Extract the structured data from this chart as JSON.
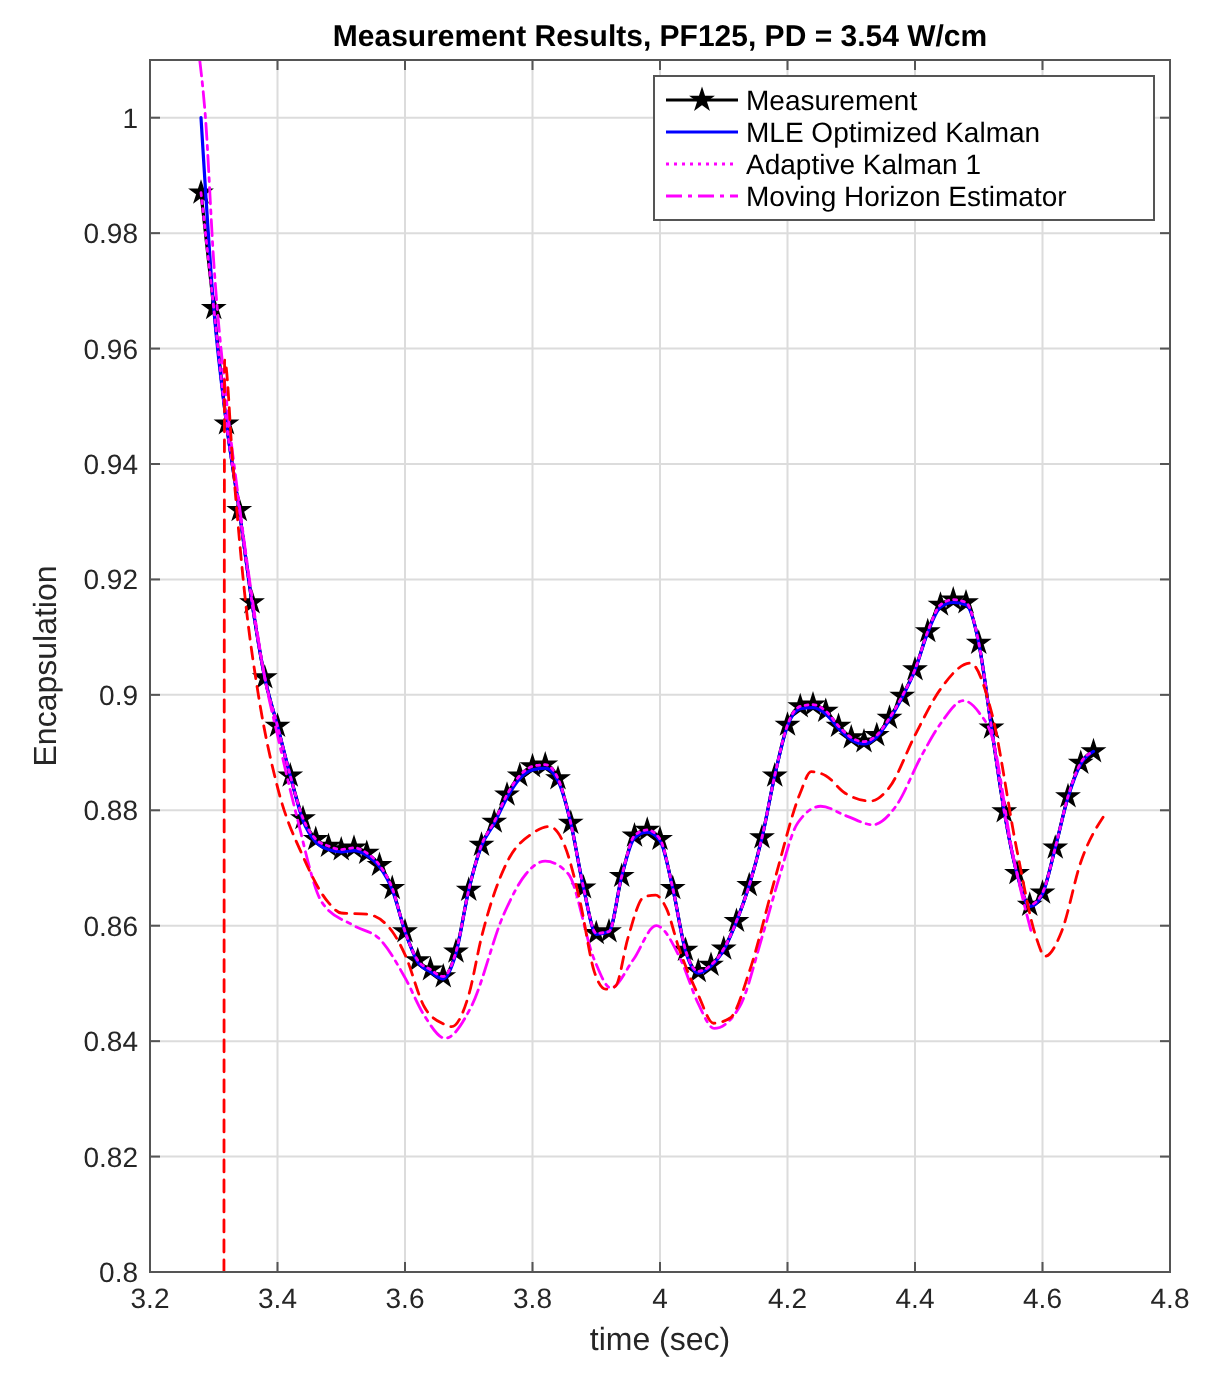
{
  "chart_data": {
    "type": "line",
    "title": "Measurement Results, PF125, PD = 3.54 W/cm",
    "xlabel": "time (sec)",
    "ylabel": "Encapsulation",
    "xlim": [
      3.2,
      4.8
    ],
    "xticks": [
      3.2,
      3.4,
      3.6,
      3.8,
      4,
      4.2,
      4.4,
      4.6,
      4.8
    ],
    "ylim": [
      0.8,
      1.01
    ],
    "yticks": [
      0.8,
      0.82,
      0.84,
      0.86,
      0.88,
      0.9,
      0.92,
      0.94,
      0.96,
      0.98,
      1
    ],
    "grid": true,
    "legend": "top right",
    "series": [
      {
        "name": "Measurement",
        "color": "#000000",
        "marker": "star",
        "line_style": "solid",
        "x": [
          3.28,
          3.3,
          3.32,
          3.34,
          3.36,
          3.38,
          3.4,
          3.42,
          3.44,
          3.46,
          3.48,
          3.5,
          3.52,
          3.54,
          3.56,
          3.58,
          3.6,
          3.62,
          3.64,
          3.66,
          3.68,
          3.7,
          3.72,
          3.74,
          3.76,
          3.78,
          3.8,
          3.82,
          3.84,
          3.86,
          3.88,
          3.9,
          3.92,
          3.94,
          3.96,
          3.98,
          4.0,
          4.02,
          4.04,
          4.06,
          4.08,
          4.1,
          4.12,
          4.14,
          4.16,
          4.18,
          4.2,
          4.22,
          4.24,
          4.26,
          4.28,
          4.3,
          4.32,
          4.34,
          4.36,
          4.38,
          4.4,
          4.42,
          4.44,
          4.46,
          4.48,
          4.5,
          4.52,
          4.54,
          4.56,
          4.58,
          4.6,
          4.62,
          4.64,
          4.66,
          4.68
        ],
        "values": [
          0.987,
          0.967,
          0.947,
          0.932,
          0.916,
          0.903,
          0.8946,
          0.886,
          0.8786,
          0.875,
          0.8738,
          0.8732,
          0.8735,
          0.8726,
          0.8705,
          0.8665,
          0.859,
          0.854,
          0.8524,
          0.8512,
          0.8555,
          0.8662,
          0.874,
          0.878,
          0.8827,
          0.886,
          0.8876,
          0.8879,
          0.8855,
          0.8778,
          0.8666,
          0.8587,
          0.859,
          0.8686,
          0.8756,
          0.8766,
          0.875,
          0.8665,
          0.8558,
          0.8521,
          0.8532,
          0.856,
          0.8608,
          0.867,
          0.8753,
          0.886,
          0.8948,
          0.898,
          0.8983,
          0.8972,
          0.8946,
          0.8926,
          0.8919,
          0.893,
          0.896,
          0.8998,
          0.9044,
          0.911,
          0.9156,
          0.9165,
          0.916,
          0.909,
          0.8943,
          0.8798,
          0.8691,
          0.8636,
          0.8657,
          0.8735,
          0.8824,
          0.8882,
          0.8902
        ]
      },
      {
        "name": "MLE Optimized Kalman",
        "color": "#0000ff",
        "line_style": "solid",
        "x": [
          3.28,
          3.3,
          3.32,
          3.34,
          3.36,
          3.38,
          3.4,
          3.42,
          3.44,
          3.46,
          3.48,
          3.5,
          3.52,
          3.54,
          3.56,
          3.58,
          3.6,
          3.62,
          3.64,
          3.66,
          3.68,
          3.7,
          3.72,
          3.74,
          3.76,
          3.78,
          3.8,
          3.82,
          3.84,
          3.86,
          3.88,
          3.9,
          3.92,
          3.94,
          3.96,
          3.98,
          4.0,
          4.02,
          4.04,
          4.06,
          4.08,
          4.1,
          4.12,
          4.14,
          4.16,
          4.18,
          4.2,
          4.22,
          4.24,
          4.26,
          4.28,
          4.3,
          4.32,
          4.34,
          4.36,
          4.38,
          4.4,
          4.42,
          4.44,
          4.46,
          4.48,
          4.5,
          4.52,
          4.54,
          4.56,
          4.58,
          4.6,
          4.62,
          4.64,
          4.66,
          4.68
        ],
        "values": [
          1.0,
          0.967,
          0.947,
          0.932,
          0.916,
          0.903,
          0.8946,
          0.886,
          0.8782,
          0.8745,
          0.8732,
          0.8728,
          0.873,
          0.8722,
          0.8702,
          0.8662,
          0.859,
          0.8537,
          0.852,
          0.8508,
          0.8552,
          0.8662,
          0.8738,
          0.8777,
          0.8822,
          0.8855,
          0.887,
          0.8873,
          0.8851,
          0.8778,
          0.8666,
          0.8585,
          0.859,
          0.8686,
          0.8752,
          0.8762,
          0.8747,
          0.8665,
          0.8556,
          0.8518,
          0.853,
          0.8558,
          0.8607,
          0.867,
          0.8752,
          0.886,
          0.8946,
          0.8976,
          0.8978,
          0.8967,
          0.8942,
          0.8922,
          0.8915,
          0.8927,
          0.8957,
          0.8996,
          0.9043,
          0.9108,
          0.9152,
          0.916,
          0.9156,
          0.909,
          0.8943,
          0.8798,
          0.869,
          0.8633,
          0.8655,
          0.8735,
          0.8822,
          0.888,
          0.8902
        ]
      },
      {
        "name": "Adaptive Kalman 1",
        "color": "#ff00ff",
        "line_style": "dotted",
        "x": [
          3.28,
          3.3,
          3.32,
          3.34,
          3.36,
          3.38,
          3.4,
          3.42,
          3.44,
          3.46,
          3.48,
          3.5,
          3.52,
          3.54,
          3.56,
          3.58,
          3.6,
          3.62,
          3.64,
          3.66,
          3.68,
          3.7,
          3.72,
          3.74,
          3.76,
          3.78,
          3.8,
          3.82,
          3.84,
          3.86,
          3.88,
          3.9,
          3.92,
          3.94,
          3.96,
          3.98,
          4.0,
          4.02,
          4.04,
          4.06,
          4.08,
          4.1,
          4.12,
          4.14,
          4.16,
          4.18,
          4.2,
          4.22,
          4.24,
          4.26,
          4.28,
          4.3,
          4.32,
          4.34,
          4.36,
          4.38,
          4.4,
          4.42,
          4.44,
          4.46,
          4.48,
          4.5,
          4.52,
          4.54,
          4.56,
          4.58,
          4.6,
          4.62,
          4.64,
          4.66,
          4.68
        ],
        "values": [
          0.987,
          0.967,
          0.947,
          0.932,
          0.916,
          0.903,
          0.8946,
          0.886,
          0.8786,
          0.875,
          0.8738,
          0.8732,
          0.8735,
          0.8726,
          0.8705,
          0.8665,
          0.859,
          0.854,
          0.8524,
          0.8512,
          0.8555,
          0.8662,
          0.874,
          0.878,
          0.8827,
          0.886,
          0.8876,
          0.8879,
          0.8855,
          0.8778,
          0.8666,
          0.8587,
          0.859,
          0.8686,
          0.8756,
          0.8766,
          0.875,
          0.8665,
          0.8558,
          0.8521,
          0.8532,
          0.856,
          0.8608,
          0.867,
          0.8753,
          0.886,
          0.8948,
          0.898,
          0.8983,
          0.8972,
          0.8946,
          0.8926,
          0.8919,
          0.893,
          0.896,
          0.8998,
          0.9044,
          0.911,
          0.9156,
          0.9165,
          0.916,
          0.909,
          0.8943,
          0.8798,
          0.8691,
          0.8636,
          0.8657,
          0.8735,
          0.8824,
          0.8882,
          0.8902
        ]
      },
      {
        "name": "Moving Horizon Estimator",
        "color": "#ff00ff",
        "line_style": "dashdot",
        "x": [
          3.278,
          3.287,
          3.3,
          3.32,
          3.34,
          3.36,
          3.38,
          3.4,
          3.429,
          3.47,
          3.52,
          3.561,
          3.6,
          3.63,
          3.663,
          3.704,
          3.755,
          3.79,
          3.82,
          3.856,
          3.897,
          3.923,
          3.958,
          3.994,
          4.033,
          4.06,
          4.085,
          4.125,
          4.16,
          4.186,
          4.216,
          4.252,
          4.293,
          4.334,
          4.37,
          4.41,
          4.44,
          4.476,
          4.5,
          4.522,
          4.553,
          4.583
        ],
        "values": [
          1.01,
          1.0,
          0.975,
          0.951,
          0.933,
          0.917,
          0.903,
          0.893,
          0.8795,
          0.864,
          0.86,
          0.8576,
          0.851,
          0.8445,
          0.8405,
          0.846,
          0.862,
          0.869,
          0.8712,
          0.869,
          0.8541,
          0.8492,
          0.8541,
          0.86,
          0.854,
          0.8465,
          0.8422,
          0.846,
          0.858,
          0.868,
          0.8778,
          0.8807,
          0.879,
          0.8775,
          0.8807,
          0.8894,
          0.895,
          0.899,
          0.897,
          0.8923,
          0.8726,
          0.8587
        ]
      },
      {
        "color": "#ff0000",
        "line_style": "dashed",
        "x": [
          3.316,
          3.317,
          3.33,
          3.35,
          3.37,
          3.4,
          3.44,
          3.48,
          3.5,
          3.54,
          3.58,
          3.6,
          3.63,
          3.66,
          3.673,
          3.7,
          3.72,
          3.76,
          3.8,
          3.826,
          3.85,
          3.875,
          3.897,
          3.915,
          3.93,
          3.95,
          3.975,
          3.993,
          4.01,
          4.03,
          4.06,
          4.084,
          4.11,
          4.14,
          4.18,
          4.22,
          4.237,
          4.26,
          4.29,
          4.33,
          4.36,
          4.4,
          4.44,
          4.487,
          4.52,
          4.56,
          4.59,
          4.604,
          4.63,
          4.66,
          4.698
        ],
        "values": [
          0.8,
          0.958,
          0.94,
          0.916,
          0.9,
          0.884,
          0.872,
          0.864,
          0.8622,
          0.862,
          0.859,
          0.855,
          0.846,
          0.843,
          0.8425,
          0.848,
          0.858,
          0.871,
          0.876,
          0.8772,
          0.874,
          0.864,
          0.852,
          0.849,
          0.8495,
          0.858,
          0.865,
          0.8653,
          0.863,
          0.856,
          0.848,
          0.8431,
          0.844,
          0.852,
          0.868,
          0.883,
          0.8867,
          0.886,
          0.883,
          0.8816,
          0.884,
          0.893,
          0.901,
          0.9055,
          0.897,
          0.873,
          0.858,
          0.8547,
          0.859,
          0.871,
          0.8793
        ]
      }
    ]
  }
}
